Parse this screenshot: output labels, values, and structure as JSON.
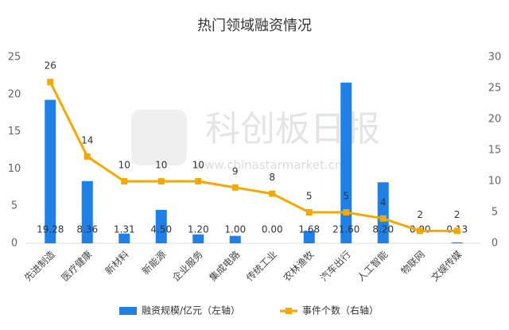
{
  "chart_data": {
    "type": "bar",
    "title": "热门领域融资情况",
    "watermark": {
      "brand": "科创板日报",
      "url": "www.chinastarmarket.cn"
    },
    "categories": [
      "先进制造",
      "医疗健康",
      "新材料",
      "新能源",
      "企业服务",
      "集成电路",
      "传统工业",
      "农林渔牧",
      "汽车出行",
      "人工智能",
      "物联网",
      "文娱传媒"
    ],
    "series": [
      {
        "name": "融资规模/亿元（左轴）",
        "type": "bar",
        "color": "#1f80e8",
        "values": [
          19.28,
          8.36,
          1.31,
          4.5,
          1.2,
          1.0,
          0.0,
          1.68,
          21.6,
          8.2,
          0.0,
          0.13
        ],
        "value_labels": [
          "19.28",
          "8.36",
          "1.31",
          "4.50",
          "1.20",
          "1.00",
          "0.00",
          "1.68",
          "21.60",
          "8.20",
          "0.00",
          "0.13"
        ]
      },
      {
        "name": "事件个数（右轴）",
        "type": "line",
        "axis": "y2",
        "color": "#f5a800",
        "values": [
          26,
          14,
          10,
          10,
          10,
          9,
          8,
          5,
          5,
          4,
          2,
          2
        ]
      }
    ],
    "ylim": [
      0,
      25
    ],
    "yticks": [
      0,
      5,
      10,
      15,
      20,
      25
    ],
    "y2lim": [
      0,
      30
    ],
    "y2ticks": [
      0,
      5,
      10,
      15,
      20,
      25,
      30
    ],
    "grid": false
  }
}
